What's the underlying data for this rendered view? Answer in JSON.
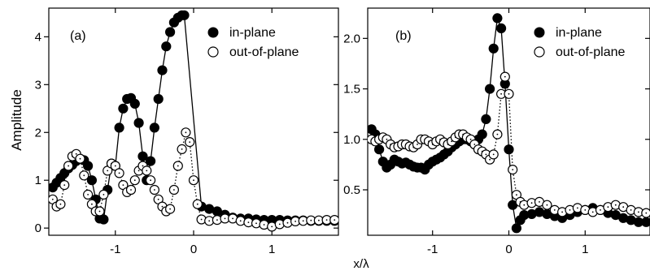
{
  "shared": {
    "xlabel": "x/λ",
    "ylabel": "Amplitude",
    "legend": {
      "in_plane": "in-plane",
      "out_of_plane": "out-of-plane",
      "placement": "top-right"
    },
    "colors": {
      "in_plane_marker": "#000000",
      "out_of_plane_marker": "#ffffff",
      "line": "#000000"
    }
  },
  "chart_data": [
    {
      "type": "scatter",
      "panel_label": "(a)",
      "xlim": [
        -1.85,
        1.85
      ],
      "ylim": [
        -0.15,
        4.6
      ],
      "x_ticks": [
        -1,
        0,
        1
      ],
      "x_tick_labels": [
        "-1",
        "0",
        "1"
      ],
      "y_ticks": [
        0,
        1,
        2,
        3,
        4
      ],
      "y_tick_labels": [
        "0",
        "1",
        "2",
        "3",
        "4"
      ],
      "grid": false,
      "series": [
        {
          "name": "in-plane",
          "marker": "filled-circle",
          "line": "solid",
          "x": [
            -1.8,
            -1.75,
            -1.7,
            -1.65,
            -1.6,
            -1.55,
            -1.5,
            -1.45,
            -1.4,
            -1.35,
            -1.3,
            -1.25,
            -1.2,
            -1.15,
            -1.1,
            -1.05,
            -1.0,
            -0.95,
            -0.9,
            -0.85,
            -0.8,
            -0.75,
            -0.7,
            -0.65,
            -0.6,
            -0.55,
            -0.5,
            -0.45,
            -0.4,
            -0.35,
            -0.3,
            -0.25,
            -0.2,
            -0.15,
            -0.12,
            0.1,
            0.2,
            0.3,
            0.4,
            0.5,
            0.6,
            0.7,
            0.8,
            0.9,
            1.0,
            1.1,
            1.2,
            1.3,
            1.4,
            1.5,
            1.6,
            1.7,
            1.8
          ],
          "y": [
            0.85,
            0.95,
            1.05,
            1.15,
            1.25,
            1.32,
            1.4,
            1.45,
            1.42,
            1.3,
            1.0,
            0.6,
            0.2,
            0.18,
            0.8,
            1.35,
            1.3,
            2.1,
            2.5,
            2.7,
            2.72,
            2.6,
            2.2,
            1.5,
            1.0,
            1.4,
            2.1,
            2.7,
            3.3,
            3.8,
            4.1,
            4.3,
            4.4,
            4.45,
            4.45,
            0.45,
            0.4,
            0.35,
            0.28,
            0.22,
            0.2,
            0.2,
            0.18,
            0.17,
            0.17,
            0.17,
            0.16,
            0.16,
            0.16,
            0.15,
            0.15,
            0.15,
            0.15
          ]
        },
        {
          "name": "out-of-plane",
          "marker": "open-circle",
          "line": "dotted",
          "x": [
            -1.8,
            -1.75,
            -1.7,
            -1.65,
            -1.6,
            -1.55,
            -1.5,
            -1.45,
            -1.4,
            -1.35,
            -1.3,
            -1.25,
            -1.2,
            -1.15,
            -1.1,
            -1.05,
            -1.0,
            -0.95,
            -0.9,
            -0.85,
            -0.8,
            -0.75,
            -0.7,
            -0.65,
            -0.6,
            -0.55,
            -0.5,
            -0.45,
            -0.4,
            -0.35,
            -0.3,
            -0.25,
            -0.2,
            -0.15,
            -0.1,
            -0.05,
            0.0,
            0.05,
            0.1,
            0.2,
            0.3,
            0.4,
            0.5,
            0.6,
            0.7,
            0.8,
            0.9,
            1.0,
            1.1,
            1.2,
            1.3,
            1.4,
            1.5,
            1.6,
            1.7,
            1.8
          ],
          "y": [
            0.6,
            0.45,
            0.5,
            0.9,
            1.3,
            1.5,
            1.55,
            1.45,
            1.1,
            0.7,
            0.5,
            0.35,
            0.35,
            0.7,
            1.2,
            1.35,
            1.3,
            1.15,
            0.9,
            0.75,
            0.8,
            1.0,
            1.2,
            1.3,
            1.2,
            1.0,
            0.8,
            0.6,
            0.45,
            0.35,
            0.4,
            0.8,
            1.3,
            1.65,
            2.0,
            1.8,
            1.0,
            0.5,
            0.18,
            0.15,
            0.17,
            0.2,
            0.2,
            0.15,
            0.12,
            0.1,
            0.07,
            0.03,
            0.08,
            0.11,
            0.14,
            0.15,
            0.16,
            0.16,
            0.17,
            0.17
          ]
        }
      ]
    },
    {
      "type": "scatter",
      "panel_label": "(b)",
      "xlim": [
        -1.85,
        1.85
      ],
      "ylim": [
        0.05,
        2.3
      ],
      "x_ticks": [
        -1,
        0,
        1
      ],
      "x_tick_labels": [
        "-1",
        "0",
        "1"
      ],
      "y_ticks": [
        0.5,
        1.0,
        1.5,
        2.0
      ],
      "y_tick_labels": [
        "0.5",
        "1.0",
        "1.5",
        "2.0"
      ],
      "grid": false,
      "series": [
        {
          "name": "in-plane",
          "marker": "filled-circle",
          "line": "solid",
          "x": [
            -1.8,
            -1.75,
            -1.7,
            -1.65,
            -1.6,
            -1.55,
            -1.5,
            -1.45,
            -1.4,
            -1.35,
            -1.3,
            -1.25,
            -1.2,
            -1.15,
            -1.1,
            -1.05,
            -1.0,
            -0.95,
            -0.9,
            -0.85,
            -0.8,
            -0.75,
            -0.7,
            -0.65,
            -0.6,
            -0.55,
            -0.5,
            -0.45,
            -0.4,
            -0.35,
            -0.3,
            -0.25,
            -0.2,
            -0.15,
            -0.1,
            -0.05,
            0.0,
            0.05,
            0.1,
            0.15,
            0.2,
            0.3,
            0.4,
            0.5,
            0.6,
            0.7,
            0.8,
            0.9,
            1.0,
            1.1,
            1.2,
            1.3,
            1.4,
            1.5,
            1.6,
            1.7,
            1.8
          ],
          "y": [
            1.1,
            1.05,
            0.9,
            0.78,
            0.72,
            0.75,
            0.8,
            0.78,
            0.76,
            0.77,
            0.75,
            0.73,
            0.72,
            0.72,
            0.7,
            0.75,
            0.78,
            0.8,
            0.82,
            0.85,
            0.88,
            0.92,
            0.95,
            0.98,
            1.0,
            1.0,
            0.98,
            0.95,
            1.0,
            1.05,
            1.2,
            1.5,
            1.9,
            2.2,
            2.1,
            1.55,
            0.9,
            0.35,
            0.12,
            0.2,
            0.25,
            0.26,
            0.28,
            0.26,
            0.24,
            0.22,
            0.25,
            0.28,
            0.3,
            0.32,
            0.3,
            0.27,
            0.25,
            0.22,
            0.2,
            0.18,
            0.18
          ]
        },
        {
          "name": "out-of-plane",
          "marker": "open-circle",
          "line": "dotted",
          "x": [
            -1.8,
            -1.75,
            -1.7,
            -1.65,
            -1.6,
            -1.55,
            -1.5,
            -1.45,
            -1.4,
            -1.35,
            -1.3,
            -1.25,
            -1.2,
            -1.15,
            -1.1,
            -1.05,
            -1.0,
            -0.95,
            -0.9,
            -0.85,
            -0.8,
            -0.75,
            -0.7,
            -0.65,
            -0.6,
            -0.55,
            -0.5,
            -0.45,
            -0.4,
            -0.35,
            -0.3,
            -0.25,
            -0.2,
            -0.15,
            -0.1,
            -0.05,
            0.0,
            0.05,
            0.1,
            0.15,
            0.2,
            0.3,
            0.4,
            0.5,
            0.6,
            0.7,
            0.8,
            0.9,
            1.0,
            1.1,
            1.2,
            1.3,
            1.4,
            1.5,
            1.6,
            1.7,
            1.8
          ],
          "y": [
            1.0,
            0.98,
            1.0,
            1.02,
            1.0,
            0.95,
            0.92,
            0.93,
            0.95,
            0.95,
            0.93,
            0.92,
            0.95,
            1.0,
            1.0,
            0.98,
            0.95,
            0.98,
            1.0,
            0.97,
            0.95,
            0.98,
            1.02,
            1.05,
            1.05,
            1.02,
            1.0,
            0.95,
            0.9,
            0.88,
            0.85,
            0.8,
            0.85,
            1.05,
            1.45,
            1.62,
            1.45,
            0.7,
            0.45,
            0.38,
            0.35,
            0.37,
            0.38,
            0.35,
            0.3,
            0.28,
            0.3,
            0.32,
            0.3,
            0.28,
            0.3,
            0.33,
            0.35,
            0.33,
            0.3,
            0.28,
            0.27
          ]
        }
      ]
    }
  ]
}
